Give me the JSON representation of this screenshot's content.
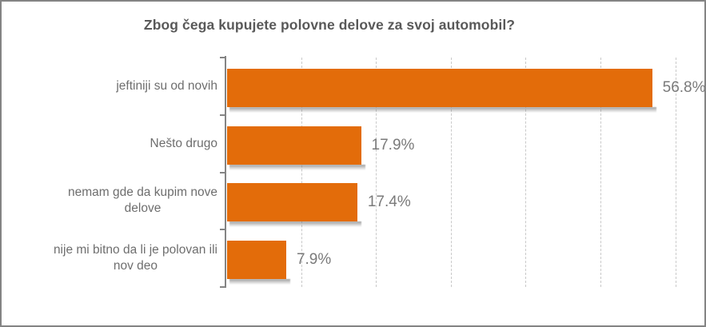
{
  "window": {
    "border_color": "#848484",
    "background_color": "#FFFFFF"
  },
  "chart_data": {
    "type": "bar",
    "orientation": "horizontal",
    "title": "Zbog čega kupujete polovne delove za svoj automobil?",
    "categories": [
      "jeftiniji su od novih",
      "Nešto drugo",
      "nemam gde da kupim nove\ndelove",
      "nije mi bitno da li je polovan ili\nnov deo"
    ],
    "values": [
      56.8,
      17.9,
      17.4,
      7.9
    ],
    "data_labels": [
      "56.8%",
      "17.9%",
      "17.4%",
      "7.9%"
    ],
    "xlabel": "",
    "ylabel": "",
    "xlim": [
      0,
      60
    ],
    "x_tick_interval": 10,
    "x_tick_labels_visible": false,
    "grid": "vertical-dashed",
    "legend": "none",
    "bar_color": "#E36C0A",
    "title_color": "#595959",
    "category_label_color": "#6E6E6E",
    "data_label_color": "#7A7A7A",
    "axis_color": "#848484",
    "gridline_color": "#C9C9C9"
  }
}
